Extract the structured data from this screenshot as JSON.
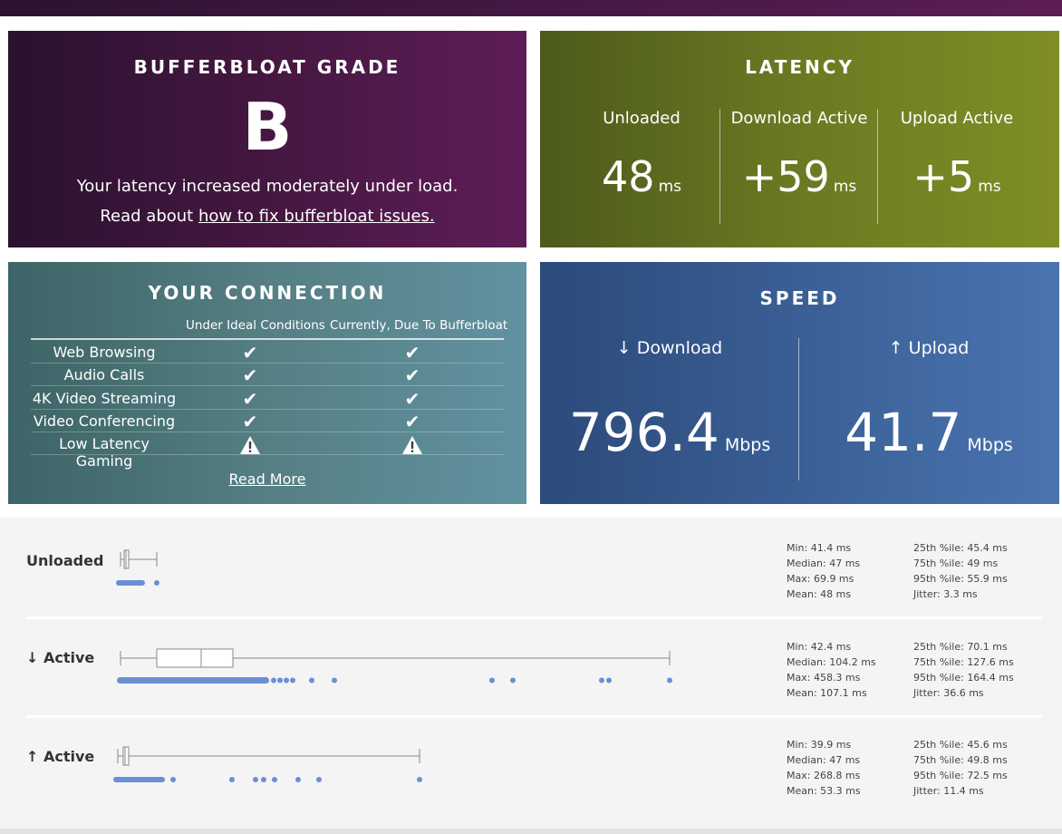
{
  "grade": {
    "title": "BUFFERBLOAT GRADE",
    "letter": "B",
    "description": "Your latency increased moderately under load.",
    "read_prefix": "Read about ",
    "read_link": "how to fix bufferbloat issues."
  },
  "latency": {
    "title": "LATENCY",
    "columns": [
      {
        "label": "Unloaded",
        "value": "48",
        "unit": "ms"
      },
      {
        "label": "Download Active",
        "value": "+59",
        "unit": "ms"
      },
      {
        "label": "Upload Active",
        "value": "+5",
        "unit": "ms"
      }
    ]
  },
  "connection": {
    "title": "YOUR CONNECTION",
    "col_ideal": "Under Ideal Conditions",
    "col_current": "Currently, Due To Bufferbloat",
    "rows": [
      {
        "name": "Web Browsing",
        "ideal": "check",
        "current": "check"
      },
      {
        "name": "Audio Calls",
        "ideal": "check",
        "current": "check"
      },
      {
        "name": "4K Video Streaming",
        "ideal": "check",
        "current": "check"
      },
      {
        "name": "Video Conferencing",
        "ideal": "check",
        "current": "check"
      },
      {
        "name": "Low Latency Gaming",
        "ideal": "warning",
        "current": "warning"
      }
    ],
    "read_more": "Read More"
  },
  "speed": {
    "title": "SPEED",
    "download": {
      "label": "↓ Download",
      "value": "796.4",
      "unit": "Mbps"
    },
    "upload": {
      "label": "↑ Upload",
      "value": "41.7",
      "unit": "Mbps"
    }
  },
  "stats": [
    {
      "label": "Unloaded",
      "left": [
        "Min: 41.4 ms",
        "Median: 47 ms",
        "Max: 69.9 ms",
        "Mean: 48 ms"
      ],
      "right": [
        "25th %ile: 45.4 ms",
        "75th %ile: 49 ms",
        "95th %ile: 55.9 ms",
        "Jitter: 3.3 ms"
      ]
    },
    {
      "label": "↓ Active",
      "left": [
        "Min: 42.4 ms",
        "Median: 104.2 ms",
        "Max: 458.3 ms",
        "Mean: 107.1 ms"
      ],
      "right": [
        "25th %ile: 70.1 ms",
        "75th %ile: 127.6 ms",
        "95th %ile: 164.4 ms",
        "Jitter: 36.6 ms"
      ]
    },
    {
      "label": "↑ Active",
      "left": [
        "Min: 39.9 ms",
        "Median: 47 ms",
        "Max: 268.8 ms",
        "Mean: 53.3 ms"
      ],
      "right": [
        "25th %ile: 45.6 ms",
        "75th %ile: 49.8 ms",
        "95th %ile: 72.5 ms",
        "Jitter: 11.4 ms"
      ]
    }
  ],
  "colors": {
    "dot": "#6b8fd4",
    "box_stroke": "#888888"
  }
}
